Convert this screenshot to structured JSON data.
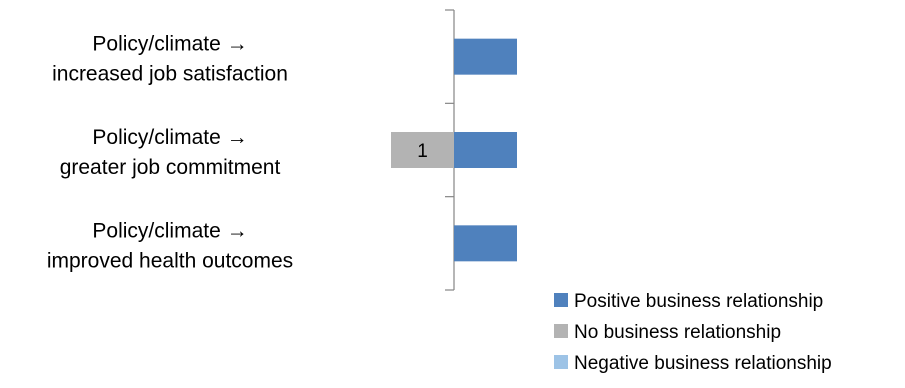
{
  "chart_data": {
    "type": "bar",
    "orientation": "horizontal",
    "stacked": true,
    "categories": [
      [
        "Policy/climate →",
        "increased job satisfaction"
      ],
      [
        "Policy/climate →",
        "greater job commitment"
      ],
      [
        "Policy/climate →",
        "improved health outcomes"
      ]
    ],
    "series": [
      {
        "name": "Positive business relationship",
        "color": "#4F81BD",
        "values": [
          1,
          1,
          1
        ],
        "direction": "positive",
        "show_labels": false
      },
      {
        "name": "No business relationship",
        "color": "#B3B3B3",
        "values": [
          0,
          1,
          0
        ],
        "direction": "negative",
        "show_labels": true
      },
      {
        "name": "Negative business relationship",
        "color": "#9DC3E6",
        "values": [
          0,
          0,
          0
        ],
        "direction": "negative",
        "show_labels": false
      }
    ],
    "legend_position": "bottom-right",
    "grid": false,
    "title": "",
    "xlabel": "",
    "ylabel": ""
  }
}
